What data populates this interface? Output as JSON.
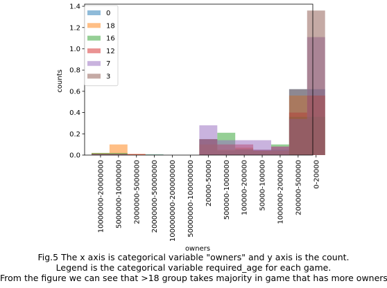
{
  "chart_data": {
    "type": "bar",
    "xlabel": "owners",
    "ylabel": "counts",
    "ylim": [
      0,
      1.42
    ],
    "yticks": [
      "0.0",
      "0.2",
      "0.4",
      "0.6",
      "0.8",
      "1.0",
      "1.2",
      "1.4"
    ],
    "categories": [
      "10000000-20000000",
      "5000000-10000000",
      "2000000-5000000",
      "20000000-50000000",
      "100000000-200000000",
      "50000000-100000000",
      "20000-50000",
      "500000-1000000",
      "100000-200000",
      "50000-100000",
      "1000000-2000000",
      "200000-500000",
      "0-20000"
    ],
    "legend_position": "upper left",
    "series": [
      {
        "name": "0",
        "color": "#1f77b4",
        "values": [
          0.01,
          0.01,
          0.0,
          0.005,
          0.0,
          0.0,
          0.15,
          0.04,
          0.06,
          0.05,
          0.05,
          0.62,
          0.62
        ]
      },
      {
        "name": "18",
        "color": "#ff7f0e",
        "values": [
          0.02,
          0.1,
          0.01,
          0.0,
          0.0,
          0.0,
          0.1,
          0.05,
          0.07,
          0.04,
          0.04,
          0.56,
          0.56
        ]
      },
      {
        "name": "16",
        "color": "#2ca02c",
        "values": [
          0.02,
          0.02,
          0.0,
          0.005,
          0.0,
          0.0,
          0.15,
          0.21,
          0.05,
          0.04,
          0.1,
          0.36,
          0.36
        ]
      },
      {
        "name": "12",
        "color": "#d62728",
        "values": [
          0.01,
          0.01,
          0.01,
          0.0,
          0.0,
          0.0,
          0.15,
          0.1,
          0.1,
          0.05,
          0.08,
          0.4,
          0.56
        ]
      },
      {
        "name": "7",
        "color": "#9467bd",
        "values": [
          0.01,
          0.01,
          0.0,
          0.0,
          0.0,
          0.0,
          0.28,
          0.14,
          0.14,
          0.14,
          0.08,
          0.34,
          1.11
        ]
      },
      {
        "name": "3",
        "color": "#8c564b",
        "values": [
          0.0,
          0.0,
          0.0,
          0.0,
          0.0,
          0.0,
          0.0,
          0.0,
          0.0,
          0.0,
          0.0,
          0.62,
          1.36
        ]
      }
    ]
  },
  "caption": {
    "line1": "Fig.5 The x axis is categorical variable \"owners\" and y axis is the count.",
    "line2": "Legend is the categorical variable required_age for each game.",
    "line3": "From the figure we can see that >18 group takes majority in game that has more owners."
  }
}
